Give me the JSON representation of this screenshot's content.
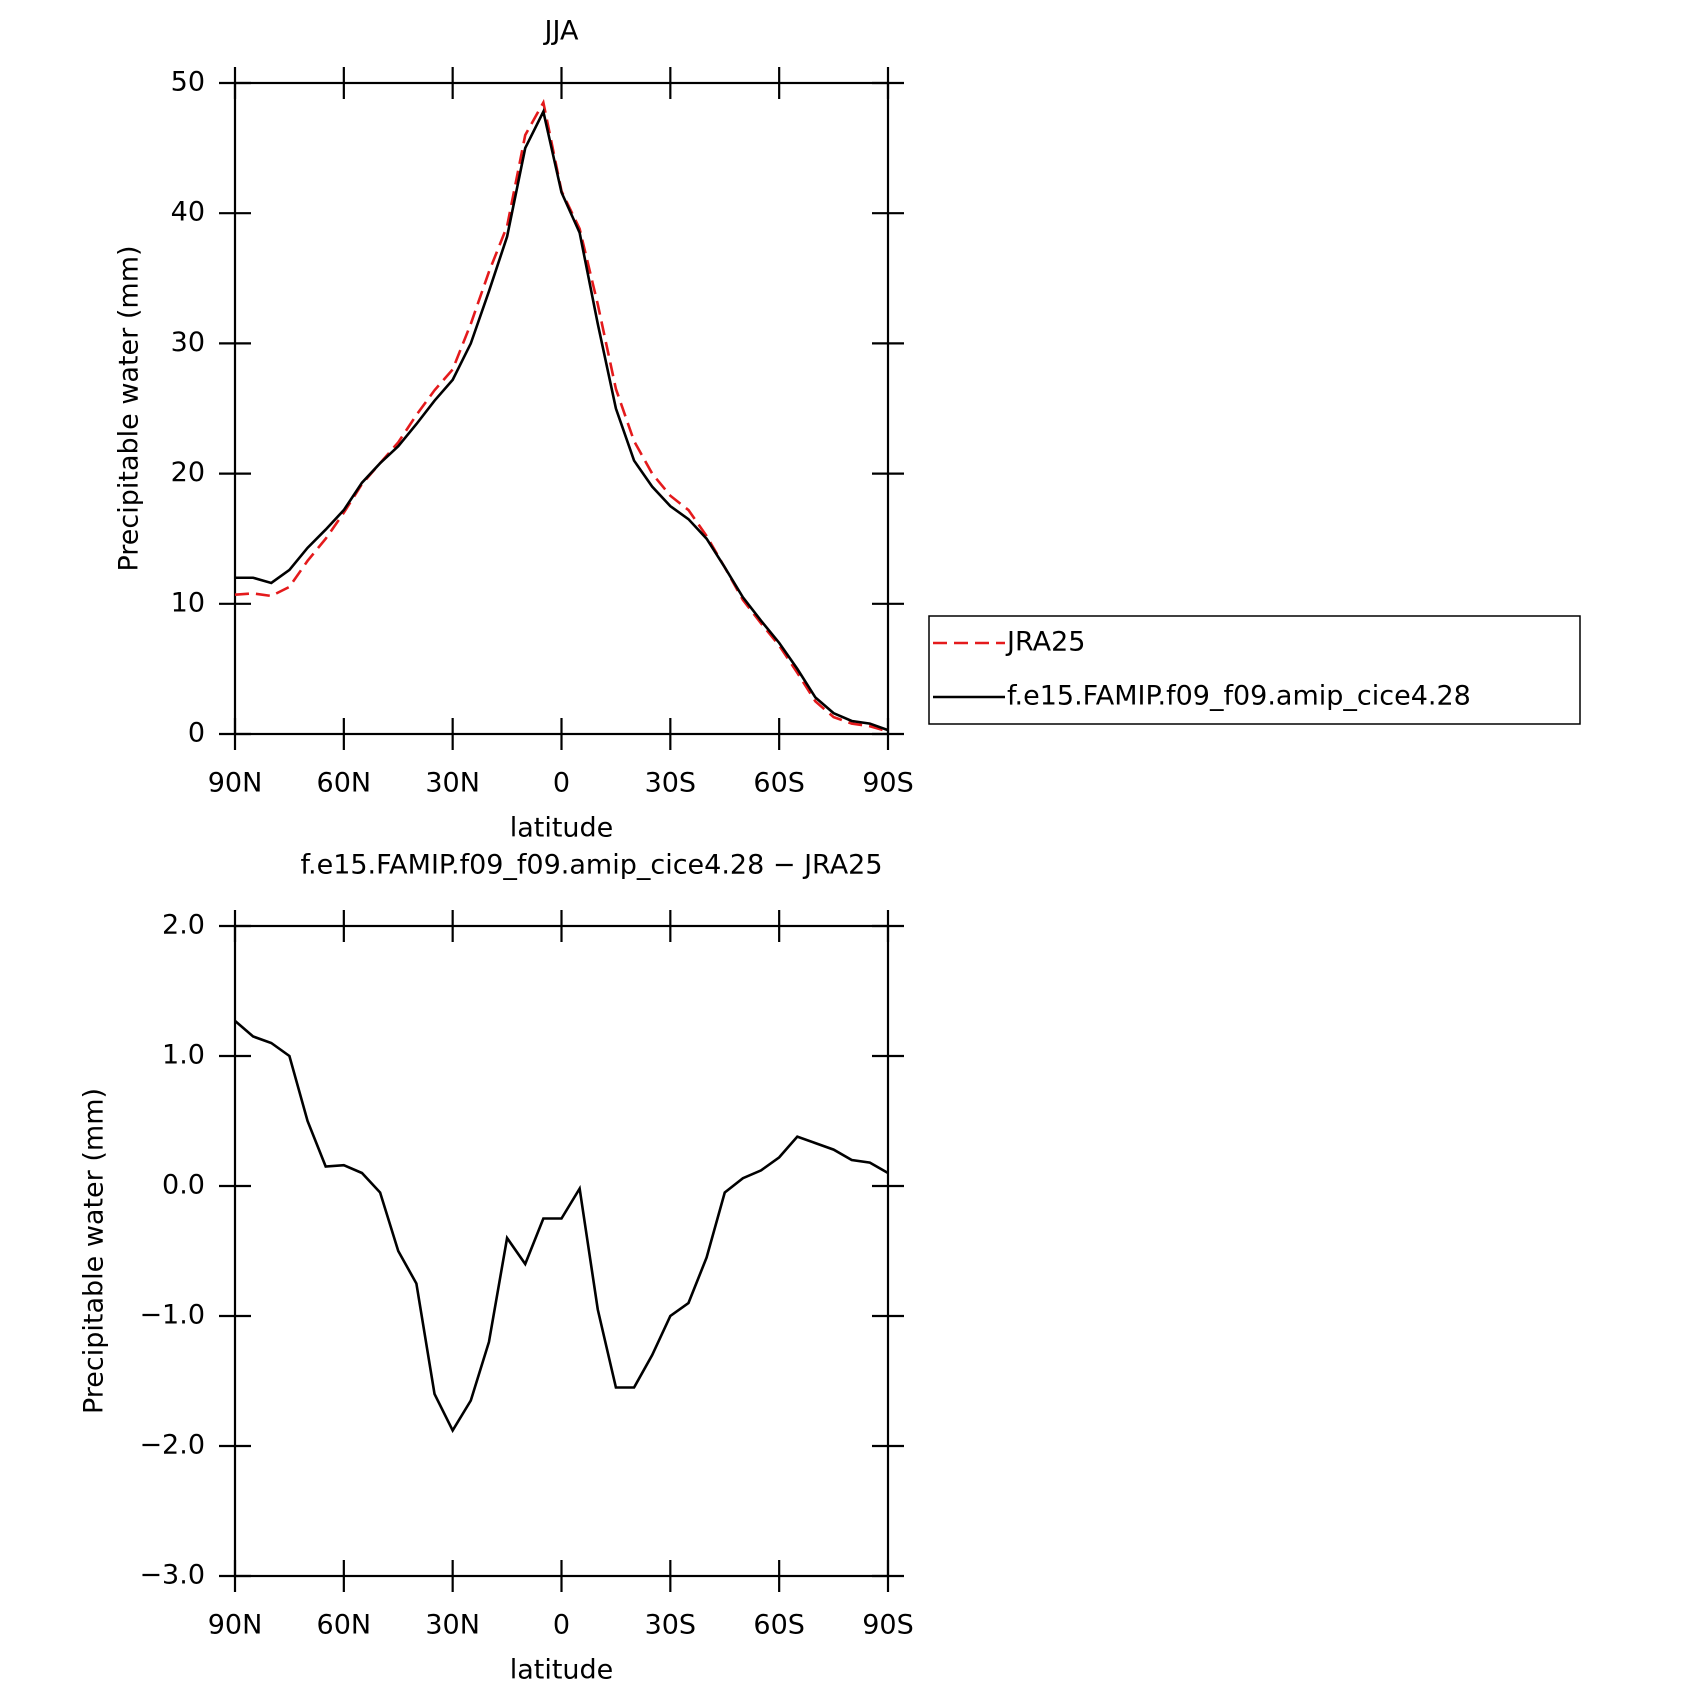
{
  "chart_data": [
    {
      "type": "line",
      "title": "JJA",
      "xlabel": "latitude",
      "ylabel": "Precipitable water (mm)",
      "x": [
        90,
        85,
        80,
        75,
        70,
        65,
        60,
        55,
        50,
        45,
        40,
        35,
        30,
        25,
        20,
        15,
        10,
        5,
        0,
        -5,
        -10,
        -15,
        -20,
        -25,
        -30,
        -35,
        -40,
        -45,
        -50,
        -55,
        -60,
        -65,
        -70,
        -75,
        -80,
        -85,
        -90
      ],
      "series": [
        {
          "name": "JRA25",
          "color": "#e41a1c",
          "dash": true,
          "values": [
            10.7,
            10.8,
            10.6,
            11.3,
            13.3,
            15.0,
            17.0,
            19.2,
            20.8,
            22.4,
            24.5,
            26.4,
            28.0,
            31.5,
            35.5,
            39.0,
            46.0,
            48.5,
            41.7,
            38.8,
            33.0,
            26.5,
            22.5,
            20.0,
            18.3,
            17.2,
            15.2,
            12.8,
            10.3,
            8.5,
            6.8,
            4.7,
            2.5,
            1.3,
            0.8,
            0.6,
            0.2
          ]
        },
        {
          "name": "f.e15.FAMIP.f09_f09.amip_cice4.28",
          "color": "#000000",
          "dash": false,
          "values": [
            12.0,
            12.0,
            11.6,
            12.6,
            14.3,
            15.7,
            17.2,
            19.3,
            20.8,
            22.1,
            23.8,
            25.6,
            27.2,
            30.0,
            34.0,
            38.2,
            45.0,
            47.8,
            41.6,
            38.5,
            31.5,
            25.0,
            21.0,
            19.0,
            17.5,
            16.5,
            15.0,
            12.8,
            10.5,
            8.7,
            7.0,
            5.0,
            2.8,
            1.6,
            1.0,
            0.8,
            0.3
          ]
        }
      ],
      "xlim": [
        90,
        -90
      ],
      "xticks": [
        {
          "value": 90,
          "label": "90N"
        },
        {
          "value": 60,
          "label": "60N"
        },
        {
          "value": 30,
          "label": "30N"
        },
        0,
        {
          "value": -30,
          "label": "30S"
        },
        {
          "value": -60,
          "label": "60S"
        },
        {
          "value": -90,
          "label": "90S"
        }
      ],
      "ylim": [
        0,
        50
      ],
      "yticks": [
        0,
        10,
        20,
        30,
        40,
        50
      ],
      "legend": "right"
    },
    {
      "type": "line",
      "title": "f.e15.FAMIP.f09_f09.amip_cice4.28 − JRA25",
      "xlabel": "latitude",
      "ylabel": "Precipitable water (mm)",
      "x": [
        90,
        85,
        80,
        75,
        70,
        65,
        60,
        55,
        50,
        45,
        40,
        35,
        30,
        25,
        20,
        15,
        10,
        5,
        0,
        -5,
        -10,
        -15,
        -20,
        -25,
        -30,
        -35,
        -40,
        -45,
        -50,
        -55,
        -60,
        -65,
        -70,
        -75,
        -80,
        -85,
        -90
      ],
      "values": [
        1.27,
        1.15,
        1.1,
        1.0,
        0.5,
        0.15,
        0.16,
        0.1,
        -0.05,
        -0.5,
        -0.75,
        -1.6,
        -1.88,
        -1.65,
        -1.2,
        -0.4,
        -0.6,
        -0.25,
        -0.25,
        -0.02,
        -0.95,
        -1.55,
        -1.55,
        -1.3,
        -1.0,
        -0.9,
        -0.55,
        -0.05,
        0.06,
        0.12,
        0.22,
        0.38,
        0.33,
        0.28,
        0.2,
        0.18,
        0.1
      ],
      "color": "#000000",
      "xlim": [
        90,
        -90
      ],
      "xticks": [
        {
          "value": 90,
          "label": "90N"
        },
        {
          "value": 60,
          "label": "60N"
        },
        {
          "value": 30,
          "label": "30N"
        },
        0,
        {
          "value": -30,
          "label": "30S"
        },
        {
          "value": -60,
          "label": "60S"
        },
        {
          "value": -90,
          "label": "90S"
        }
      ],
      "ylim": [
        -3,
        2
      ],
      "yticks": [
        {
          "value": -3,
          "label": "−3.0"
        },
        {
          "value": -2,
          "label": "−2.0"
        },
        {
          "value": -1,
          "label": "−1.0"
        },
        {
          "value": 0,
          "label": "0.0"
        },
        {
          "value": 1,
          "label": "1.0"
        },
        {
          "value": 2,
          "label": "2.0"
        }
      ]
    }
  ]
}
